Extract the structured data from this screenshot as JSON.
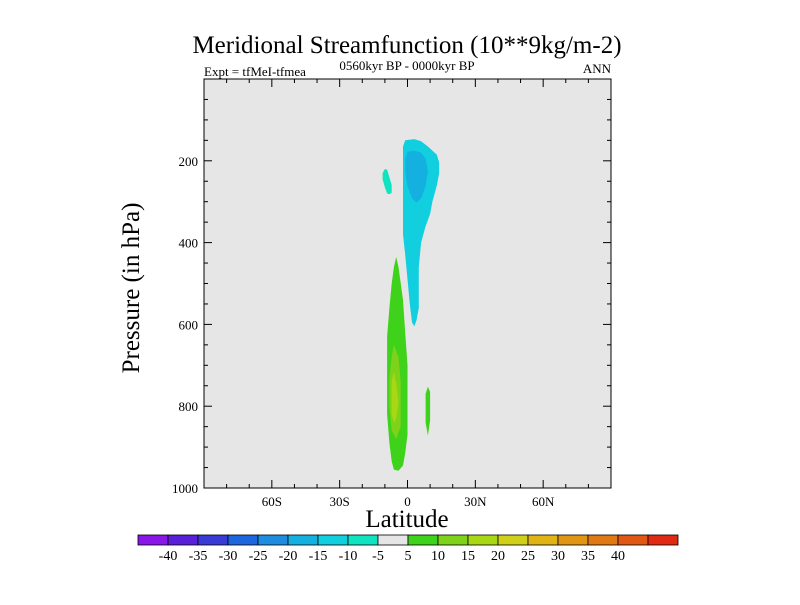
{
  "chart_data": {
    "type": "contour",
    "title": "Meridional Streamfunction (10**9kg/m-2)",
    "subtitle_left": "Expt = tfMeI-tfmea",
    "subtitle_center": "0560kyr BP - 0000kyr BP",
    "subtitle_right": "ANN",
    "xlabel": "Latitude",
    "ylabel": "Pressure (in hPa)",
    "xlim": [
      -90,
      90
    ],
    "ylim": [
      1000,
      0
    ],
    "x_ticks": [
      {
        "value": -60,
        "label": "60S"
      },
      {
        "value": -30,
        "label": "30S"
      },
      {
        "value": 0,
        "label": "0"
      },
      {
        "value": 30,
        "label": "30N"
      },
      {
        "value": 60,
        "label": "60N"
      }
    ],
    "y_ticks": [
      {
        "value": 200,
        "label": "200"
      },
      {
        "value": 400,
        "label": "400"
      },
      {
        "value": 600,
        "label": "600"
      },
      {
        "value": 800,
        "label": "800"
      },
      {
        "value": 1000,
        "label": "1000"
      }
    ],
    "background_color": "#e6e6e6",
    "colorbar": {
      "labels": [
        "-40",
        "-35",
        "-30",
        "-25",
        "-20",
        "-15",
        "-10",
        "-5",
        "5",
        "10",
        "15",
        "20",
        "25",
        "30",
        "35",
        "40"
      ],
      "colors": [
        "#8a16e8",
        "#5a1fd9",
        "#3a3ad6",
        "#1e66de",
        "#1e8de0",
        "#14b0e0",
        "#12cfe0",
        "#10e3c0",
        "#e6e6e6",
        "#3fd21a",
        "#7ed21a",
        "#a8d814",
        "#d0d01a",
        "#e0b414",
        "#e09614",
        "#e07814",
        "#e05814",
        "#e02a14"
      ]
    },
    "regions": [
      {
        "name": "negative-cell-upper",
        "level": -10,
        "color": "#12cfe0",
        "points": [
          [
            -1,
            150
          ],
          [
            3,
            147
          ],
          [
            6,
            152
          ],
          [
            9,
            165
          ],
          [
            11,
            175
          ],
          [
            13,
            185
          ],
          [
            14,
            205
          ],
          [
            14,
            230
          ],
          [
            13,
            260
          ],
          [
            11,
            300
          ],
          [
            10,
            330
          ],
          [
            8,
            360
          ],
          [
            6,
            400
          ],
          [
            5,
            460
          ],
          [
            5,
            520
          ],
          [
            5,
            560
          ],
          [
            4,
            590
          ],
          [
            3,
            605
          ],
          [
            2,
            595
          ],
          [
            1,
            550
          ],
          [
            0,
            490
          ],
          [
            -1,
            430
          ],
          [
            -2,
            380
          ],
          [
            -2,
            330
          ],
          [
            -2,
            280
          ],
          [
            -2,
            230
          ],
          [
            -2,
            190
          ],
          [
            -2,
            165
          ]
        ]
      },
      {
        "name": "negative-cell-upper-core",
        "level": -15,
        "color": "#14b0e0",
        "points": [
          [
            0,
            178
          ],
          [
            3,
            175
          ],
          [
            6,
            180
          ],
          [
            8,
            195
          ],
          [
            9,
            225
          ],
          [
            8,
            262
          ],
          [
            6,
            292
          ],
          [
            4,
            302
          ],
          [
            2,
            292
          ],
          [
            0,
            262
          ],
          [
            -1,
            225
          ],
          [
            -1,
            195
          ]
        ]
      },
      {
        "name": "negative-blob-left",
        "level": -5,
        "color": "#10e3c0",
        "points": [
          [
            -10,
            220
          ],
          [
            -9,
            222
          ],
          [
            -8,
            240
          ],
          [
            -7,
            260
          ],
          [
            -7,
            278
          ],
          [
            -8,
            282
          ],
          [
            -9,
            280
          ],
          [
            -10,
            265
          ],
          [
            -11,
            245
          ],
          [
            -11,
            230
          ]
        ]
      },
      {
        "name": "positive-cell-lower",
        "level": 5,
        "color": "#3fd21a",
        "points": [
          [
            -5,
            435
          ],
          [
            -4,
            460
          ],
          [
            -2,
            540
          ],
          [
            -1,
            620
          ],
          [
            0,
            700
          ],
          [
            0,
            780
          ],
          [
            0,
            870
          ],
          [
            -1,
            915
          ],
          [
            -2,
            945
          ],
          [
            -4,
            958
          ],
          [
            -6,
            955
          ],
          [
            -7,
            935
          ],
          [
            -8,
            890
          ],
          [
            -9,
            820
          ],
          [
            -9,
            720
          ],
          [
            -9,
            630
          ],
          [
            -8,
            560
          ],
          [
            -7,
            500
          ],
          [
            -6,
            460
          ]
        ]
      },
      {
        "name": "positive-cell-lower-mid",
        "level": 10,
        "color": "#7ed21a",
        "points": [
          [
            -6,
            650
          ],
          [
            -4,
            680
          ],
          [
            -3,
            740
          ],
          [
            -3,
            800
          ],
          [
            -3,
            850
          ],
          [
            -5,
            880
          ],
          [
            -7,
            860
          ],
          [
            -8,
            800
          ],
          [
            -8,
            730
          ],
          [
            -7,
            680
          ]
        ]
      },
      {
        "name": "positive-cell-lower-core",
        "level": 15,
        "color": "#a8d814",
        "points": [
          [
            -6,
            715
          ],
          [
            -5,
            745
          ],
          [
            -4,
            790
          ],
          [
            -5,
            830
          ],
          [
            -6,
            840
          ],
          [
            -7,
            820
          ],
          [
            -7,
            780
          ],
          [
            -7,
            740
          ]
        ]
      },
      {
        "name": "positive-sliver-right",
        "level": 5,
        "color": "#3fd21a",
        "points": [
          [
            9,
            752
          ],
          [
            10,
            765
          ],
          [
            10,
            800
          ],
          [
            10,
            835
          ],
          [
            9,
            872
          ],
          [
            8,
            840
          ],
          [
            8,
            800
          ],
          [
            8,
            770
          ]
        ]
      }
    ]
  }
}
